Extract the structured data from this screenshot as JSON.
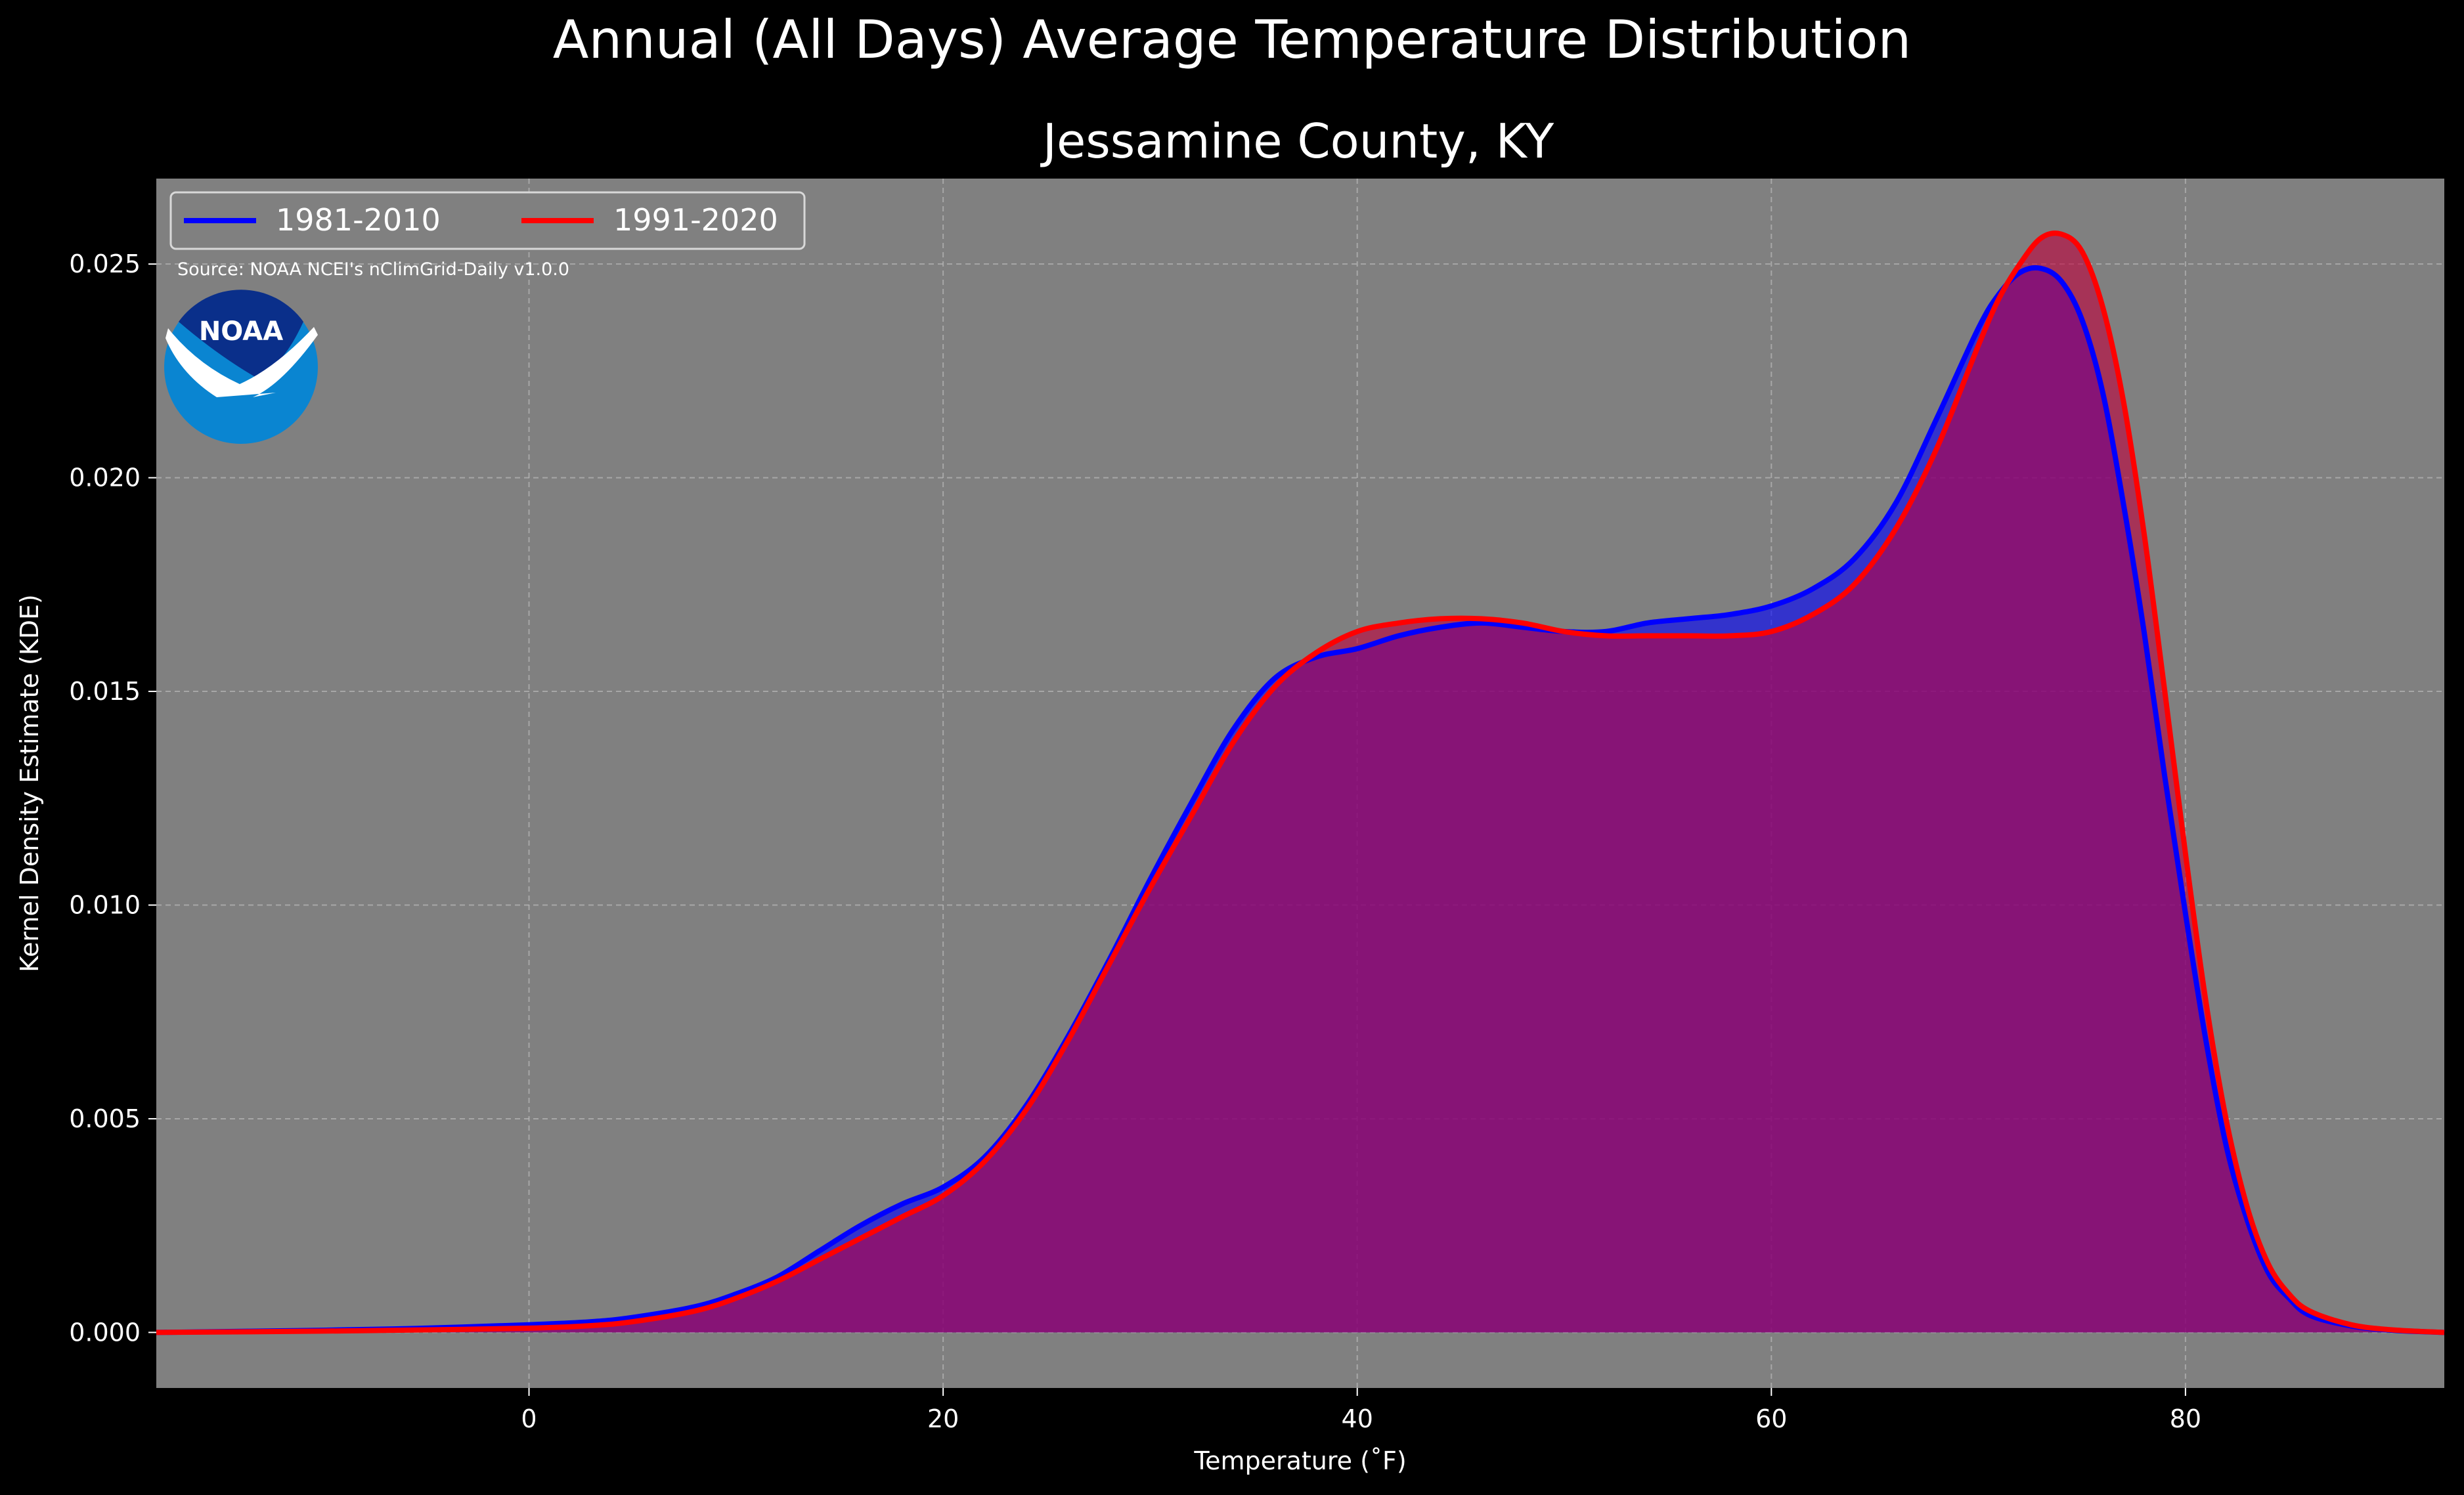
{
  "chart_data": {
    "type": "area",
    "suptitle": "Annual (All Days) Average Temperature Distribution",
    "title": "Jessamine County, KY",
    "xlabel": "Temperature ($^\\circ$F)",
    "xlabel_display": "Temperature (˚F)",
    "ylabel": "Kernel Density Estimate (KDE)",
    "source": "Source: NOAA NCEI's nClimGrid-Daily v1.0.0",
    "logo_text": "NOAA",
    "xlim": [
      -18,
      92.5
    ],
    "ylim": [
      -0.0013,
      0.027
    ],
    "xticks": [
      0,
      20,
      40,
      60,
      80
    ],
    "xtick_labels": [
      "0",
      "20",
      "40",
      "60",
      "80"
    ],
    "yticks": [
      0.0,
      0.005,
      0.01,
      0.015,
      0.02,
      0.025
    ],
    "ytick_labels": [
      "0.000",
      "0.005",
      "0.010",
      "0.015",
      "0.020",
      "0.025"
    ],
    "grid": true,
    "legend_position": "top-left",
    "colors": {
      "figure_bg": "#000000",
      "axes_bg": "#808080",
      "grid": "#b8b8b8",
      "text": "#ffffff",
      "logo_dark": "#0a2f8a",
      "logo_light": "#0a85d1"
    },
    "series": [
      {
        "name": "1981-2010",
        "color": "#0000ff",
        "fill": "#0000ff",
        "fill_opacity": 0.6,
        "x": [
          -18,
          -10,
          -5,
          0,
          3,
          5,
          8,
          10,
          12,
          14,
          16,
          18,
          20,
          22,
          24,
          26,
          28,
          30,
          32,
          34,
          36,
          38,
          40,
          42,
          44,
          46,
          48,
          50,
          52,
          54,
          56,
          58,
          60,
          62,
          64,
          66,
          68,
          70,
          71,
          72,
          73,
          74,
          75,
          76,
          77,
          78,
          79,
          80,
          81,
          82,
          83,
          84,
          85,
          86,
          88,
          90,
          92.5
        ],
        "y": [
          0.0,
          5e-05,
          0.0001,
          0.00018,
          0.00025,
          0.00035,
          0.0006,
          0.0009,
          0.0013,
          0.0019,
          0.0025,
          0.003,
          0.0034,
          0.0041,
          0.0053,
          0.0069,
          0.0087,
          0.0106,
          0.0124,
          0.0141,
          0.0153,
          0.0158,
          0.016,
          0.0163,
          0.0165,
          0.0166,
          0.0165,
          0.0164,
          0.0164,
          0.0166,
          0.0167,
          0.0168,
          0.017,
          0.0174,
          0.0181,
          0.0194,
          0.0214,
          0.0235,
          0.0243,
          0.0248,
          0.0249,
          0.0246,
          0.0237,
          0.022,
          0.0194,
          0.0164,
          0.013,
          0.0098,
          0.0068,
          0.0043,
          0.0026,
          0.0014,
          0.0008,
          0.0004,
          0.00015,
          5e-05,
          0.0
        ]
      },
      {
        "name": "1991-2020",
        "color": "#ff0000",
        "fill": "#c0003c",
        "fill_opacity": 0.6,
        "x": [
          -18,
          -10,
          -5,
          0,
          3,
          5,
          8,
          10,
          12,
          14,
          16,
          18,
          20,
          22,
          24,
          26,
          28,
          30,
          32,
          34,
          36,
          38,
          40,
          42,
          44,
          46,
          48,
          50,
          52,
          54,
          56,
          58,
          60,
          62,
          64,
          66,
          68,
          70,
          71,
          72,
          73,
          74,
          75,
          76,
          77,
          78,
          79,
          80,
          81,
          82,
          83,
          84,
          85,
          86,
          88,
          90,
          92.5
        ],
        "y": [
          0.0,
          3e-05,
          6e-05,
          0.0001,
          0.00016,
          0.00025,
          0.0005,
          0.0008,
          0.0012,
          0.0017,
          0.0022,
          0.0027,
          0.0032,
          0.004,
          0.0052,
          0.0068,
          0.0086,
          0.0104,
          0.0121,
          0.0138,
          0.0151,
          0.0159,
          0.0164,
          0.0166,
          0.0167,
          0.0167,
          0.0166,
          0.0164,
          0.0163,
          0.0163,
          0.0163,
          0.0163,
          0.0164,
          0.0168,
          0.0175,
          0.0188,
          0.0207,
          0.0231,
          0.0242,
          0.025,
          0.0256,
          0.0257,
          0.0253,
          0.024,
          0.0218,
          0.0187,
          0.015,
          0.0112,
          0.0077,
          0.0049,
          0.0029,
          0.0016,
          0.0009,
          0.0005,
          0.00018,
          6e-05,
          0.0
        ]
      }
    ]
  }
}
